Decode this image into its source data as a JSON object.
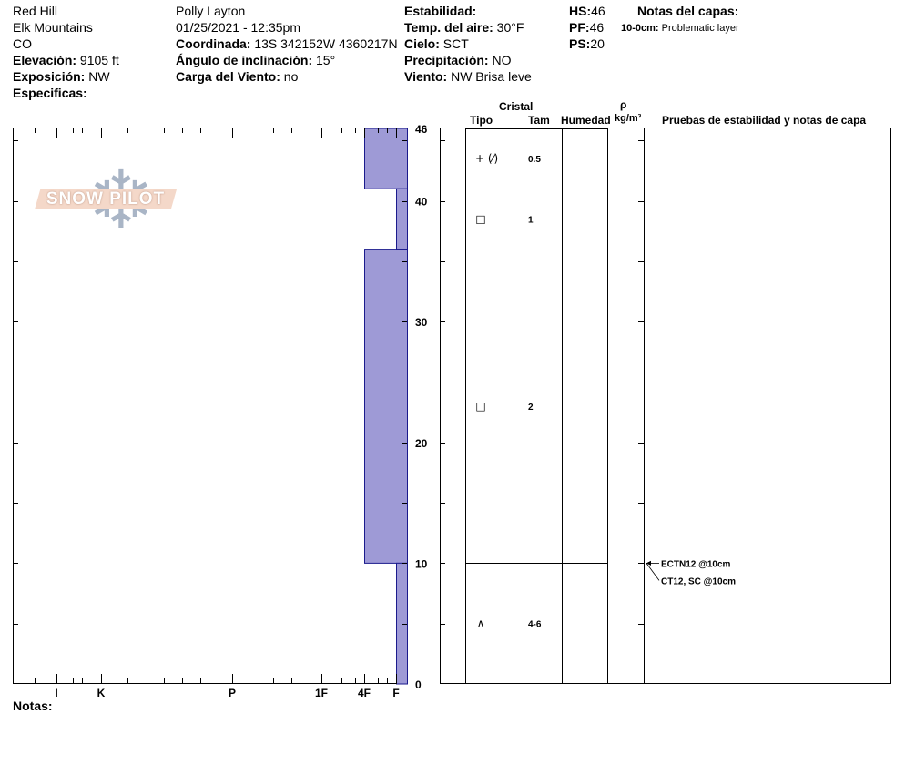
{
  "header": {
    "location": "Red Hill",
    "range": "Elk Mountains",
    "state": "CO",
    "elevation_label": "Elevación:",
    "elevation_value": "9105 ft",
    "aspect_label": "Exposición:",
    "aspect_value": "NW",
    "specifics_label": "Especificas:",
    "observer": "Polly Layton",
    "datetime": "01/25/2021 - 12:35pm",
    "coord_label": "Coordinada:",
    "coord_value": "13S 342152W 4360217N",
    "slope_label": "Ángulo de inclinación:",
    "slope_value": "15°",
    "wind_load_label": "Carga del Viento:",
    "wind_load_value": "no",
    "stability_label": "Estabilidad:",
    "air_temp_label": "Temp. del aire:",
    "air_temp_value": "30°F",
    "sky_label": "Cielo:",
    "sky_value": "SCT",
    "precip_label": "Precipitación:",
    "precip_value": "NO",
    "wind_label": "Viento:",
    "wind_value": "NW Brisa leve",
    "hs_label": "HS:",
    "hs_value": "46",
    "pf_label": "PF:",
    "pf_value": "46",
    "ps_label": "PS:",
    "ps_value": "20",
    "layer_notes_title": "Notas del capas:",
    "layer_note_depth": "10-0cm:",
    "layer_note_text": "Problematic layer"
  },
  "logo": {
    "text": "SNOW PILOT",
    "flake": "❄"
  },
  "notes_label": "Notas:",
  "columns": {
    "crystal": "Cristal",
    "type": "Tipo",
    "size": "Tam",
    "moisture": "Humedad",
    "rho": "ρ",
    "density_unit": "kg/m³",
    "tests": "Pruebas de estabilidad y notas de capa"
  },
  "hardness_ticks": [
    "I",
    "K",
    "P",
    "1F",
    "4F",
    "F"
  ],
  "colors": {
    "hardness_fill": "#9e9ad6",
    "hardness_stroke": "#1a1a8c"
  },
  "chart_data": {
    "type": "bar",
    "title": "",
    "xlabel": "",
    "ylabel": "",
    "y_unit": "cm",
    "ylim": [
      0,
      46
    ],
    "y_ticks": [
      0,
      10,
      20,
      30,
      40,
      46
    ],
    "x_scale": "hardness",
    "x_categories": [
      "I",
      "K",
      "P",
      "1F",
      "4F",
      "F"
    ],
    "layers": [
      {
        "top": 46,
        "bottom": 41,
        "hardness": "4F",
        "crystal": "+ (⁄)",
        "size": "0.5"
      },
      {
        "top": 41,
        "bottom": 36,
        "hardness": "F",
        "crystal": "□",
        "size": "1"
      },
      {
        "top": 36,
        "bottom": 10,
        "hardness": "4F",
        "crystal": "□",
        "size": "2"
      },
      {
        "top": 10,
        "bottom": 0,
        "hardness": "F",
        "crystal": "∧",
        "size": "4-6"
      }
    ],
    "tests": [
      {
        "depth": 10,
        "label": "ECTN12 @10cm"
      },
      {
        "depth": 10,
        "label": "CT12, SC @10cm"
      }
    ]
  }
}
